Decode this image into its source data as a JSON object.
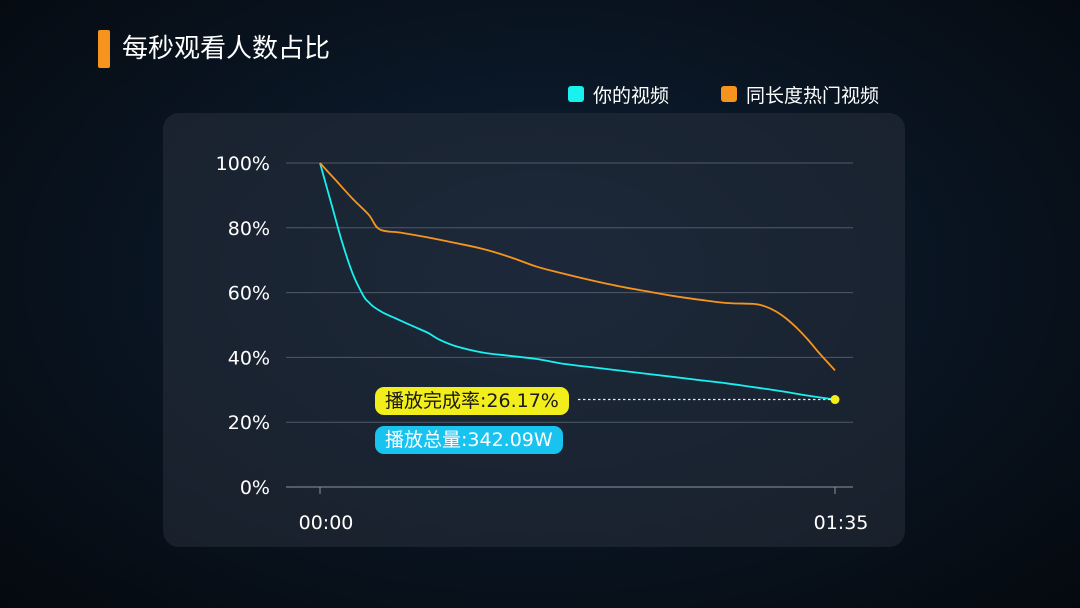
{
  "title": "每秒观看人数占比",
  "legend": [
    {
      "label": "你的视频",
      "color": "#19f0f0"
    },
    {
      "label": "同长度热门视频",
      "color": "#f7941d"
    }
  ],
  "badges": {
    "completion": "播放完成率:26.17%",
    "total_plays": "播放总量:342.09W"
  },
  "chart_data": {
    "type": "line",
    "x_ticks": [
      "00:00",
      "01:35"
    ],
    "y_ticks": [
      "0%",
      "20%",
      "40%",
      "60%",
      "80%",
      "100%"
    ],
    "ylim": [
      0,
      100
    ],
    "xlim_seconds": [
      0,
      95
    ],
    "grid": true,
    "legend_position": "top-right",
    "series": [
      {
        "name": "你的视频",
        "color": "#19f0f0",
        "x": [
          0,
          2,
          4,
          6,
          8,
          9,
          10,
          12,
          14,
          16,
          18,
          20,
          22,
          25,
          30,
          35,
          40,
          45,
          50,
          55,
          60,
          65,
          70,
          75,
          80,
          85,
          90,
          95
        ],
        "y": [
          100,
          88,
          76,
          66,
          59,
          57,
          55.5,
          53.5,
          52,
          50.5,
          49,
          47.5,
          45.5,
          43.5,
          41.5,
          40.5,
          39.5,
          38,
          37,
          36,
          35,
          34,
          33,
          32,
          30.8,
          29.6,
          28.2,
          27
        ]
      },
      {
        "name": "同长度热门视频",
        "color": "#f7941d",
        "x": [
          0,
          3,
          6,
          9,
          11,
          15,
          20,
          25,
          30,
          35,
          40,
          45,
          50,
          55,
          60,
          65,
          70,
          75,
          80,
          82,
          84,
          86,
          88,
          90,
          92,
          95
        ],
        "y": [
          100,
          94.5,
          89,
          84,
          79.5,
          78.5,
          77,
          75.3,
          73.5,
          71,
          68,
          65.8,
          63.8,
          62,
          60.5,
          59,
          57.8,
          56.8,
          56.5,
          55.8,
          54.3,
          52,
          49,
          45.5,
          41.5,
          36
        ]
      }
    ],
    "highlight": {
      "x": 95,
      "y": 27
    }
  }
}
